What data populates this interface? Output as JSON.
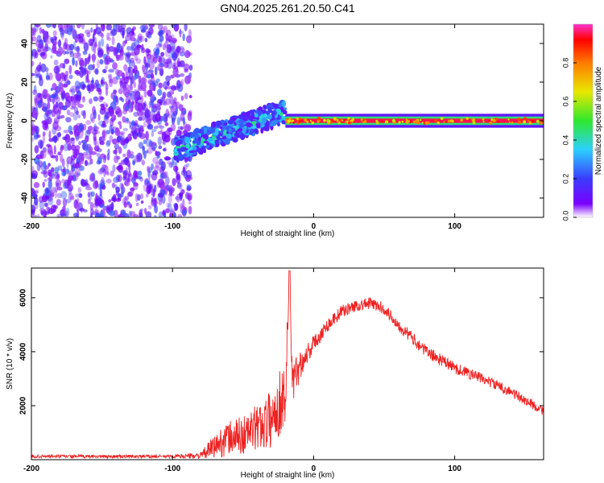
{
  "figure_title": "GN04.2025.261.20.50.C41",
  "colors": {
    "line": "#ee2222",
    "axis": "#000000",
    "background": "#ffffff",
    "colormap": [
      "#ffffff",
      "#7b00ff",
      "#3a3cff",
      "#2cd0ff",
      "#2ee82e",
      "#e8e800",
      "#ff7a00",
      "#ff0000",
      "#ff33cc"
    ]
  },
  "chart_data": [
    {
      "type": "heatmap",
      "name": "spectrogram",
      "title": "GN04.2025.261.20.50.C41",
      "xlabel": "Height of straight line (km)",
      "ylabel": "Frequency (Hz)",
      "xlim": [
        -200,
        163
      ],
      "ylim": [
        -50,
        50
      ],
      "xticks": [
        -200,
        -100,
        0,
        100
      ],
      "yticks": [
        -40,
        -20,
        0,
        20,
        40
      ],
      "regions": [
        {
          "label": "broadband noise",
          "x": [
            -200,
            -87
          ],
          "y": [
            -50,
            50
          ],
          "intensity": [
            0.05,
            0.25
          ]
        },
        {
          "label": "rising signal band",
          "x": [
            -98,
            -20
          ],
          "center_y": [
            -15,
            5
          ],
          "half_width": 6,
          "intensity": [
            0.1,
            0.5
          ]
        },
        {
          "label": "narrow carrier line",
          "x": [
            -20,
            163
          ],
          "center_y": 0,
          "half_width": 2,
          "intensity": [
            0.6,
            0.95
          ]
        }
      ],
      "colorbar": {
        "label": "Normalized spectral amplitude",
        "range": [
          0,
          1
        ],
        "ticks": [
          "0.0",
          "0.2",
          "0.4",
          "0.6",
          "0.8"
        ]
      }
    },
    {
      "type": "line",
      "name": "snr",
      "xlabel": "Height of straight line (km)",
      "ylabel": "SNR (10 * v/v)",
      "xlim": [
        -200,
        163
      ],
      "ylim": [
        0,
        7100
      ],
      "xticks": [
        -200,
        -100,
        0,
        100
      ],
      "yticks": [
        2000,
        4000,
        6000
      ],
      "series": [
        {
          "name": "SNR",
          "x": [
            -200,
            -150,
            -100,
            -80,
            -70,
            -60,
            -50,
            -40,
            -30,
            -20,
            -17,
            -15,
            -10,
            0,
            10,
            20,
            30,
            40,
            50,
            60,
            80,
            100,
            120,
            140,
            163
          ],
          "y": [
            120,
            120,
            120,
            150,
            500,
            800,
            900,
            1200,
            1500,
            2500,
            6800,
            2700,
            3500,
            4300,
            5000,
            5500,
            5700,
            5800,
            5600,
            5000,
            4000,
            3400,
            3000,
            2500,
            1800
          ],
          "spread": [
            60,
            60,
            60,
            120,
            450,
            650,
            750,
            850,
            1100,
            1300,
            300,
            1000,
            550,
            320,
            260,
            230,
            220,
            220,
            230,
            240,
            230,
            220,
            200,
            190,
            170
          ]
        }
      ]
    }
  ]
}
